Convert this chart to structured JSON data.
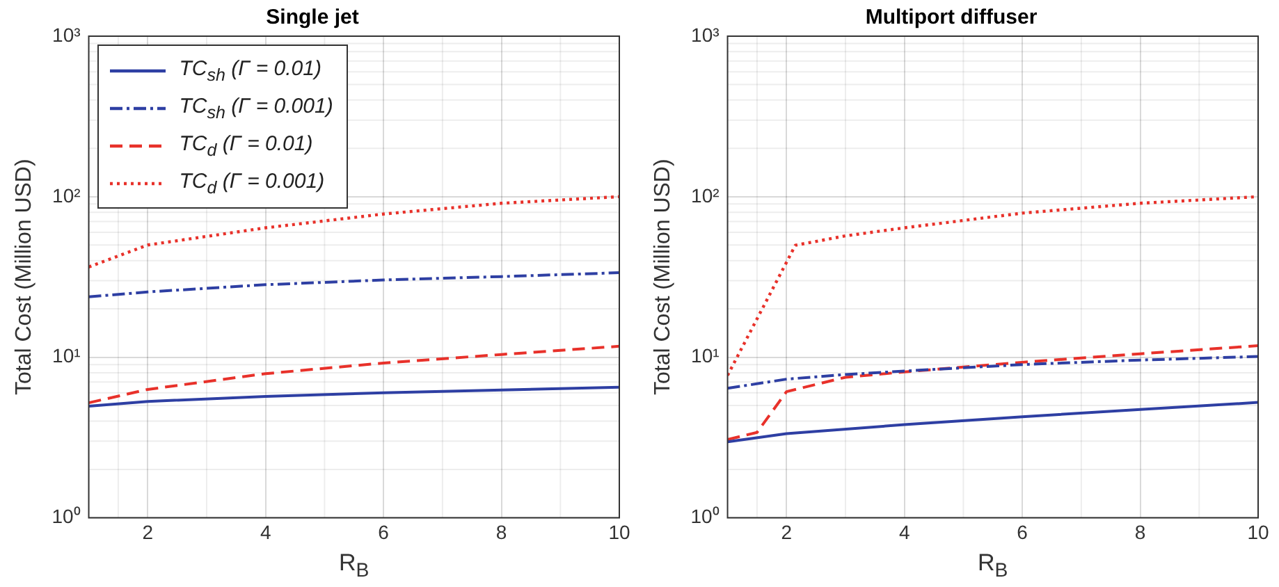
{
  "chart_data": [
    {
      "type": "line",
      "title": "Single jet",
      "xlabel": "R$_{B}$",
      "ylabel": "Total Cost (Million USD)",
      "log": "y",
      "grid": true,
      "legend": "top left",
      "marker": "none",
      "xlim": [
        1,
        10
      ],
      "xticks": [
        2,
        4,
        6,
        8,
        10
      ],
      "ylim": [
        1,
        1000
      ],
      "yticks": [
        {
          "value": 1,
          "label": "10⁰"
        },
        {
          "value": 10,
          "label": "10¹"
        },
        {
          "value": 100,
          "label": "10²"
        },
        {
          "value": 1000,
          "label": "10³"
        }
      ],
      "x": [
        1,
        2,
        4,
        6,
        8,
        10
      ],
      "series": [
        {
          "name": "TC$_{sh}$ (Γ = 0.01)",
          "color": "#2e3fa3",
          "line_style": "solid",
          "values": [
            4.95,
            5.3,
            5.7,
            6.0,
            6.25,
            6.5
          ]
        },
        {
          "name": "TC$_{sh}$ (Γ = 0.001)",
          "color": "#2e3fa3",
          "line_style": "dashdot",
          "values": [
            23.8,
            25.5,
            28.3,
            30.3,
            31.8,
            33.6
          ]
        },
        {
          "name": "TC$_{d}$ (Γ = 0.01)",
          "color": "#e8312a",
          "line_style": "dashed",
          "values": [
            5.2,
            6.3,
            7.9,
            9.2,
            10.4,
            11.7
          ]
        },
        {
          "name": "TC$_{d}$ (Γ = 0.001)",
          "color": "#e8312a",
          "line_style": "dotted",
          "values": [
            36.5,
            50,
            64,
            78,
            91,
            100
          ]
        }
      ]
    },
    {
      "type": "line",
      "title": "Multiport diffuser",
      "xlabel": "R$_{B}$",
      "ylabel": "Total Cost (Million USD)",
      "log": "y",
      "grid": true,
      "marker": "none",
      "xlim": [
        1,
        10
      ],
      "xticks": [
        2,
        4,
        6,
        8,
        10
      ],
      "ylim": [
        1,
        1000
      ],
      "yticks": [
        {
          "value": 1,
          "label": "10⁰"
        },
        {
          "value": 10,
          "label": "10¹"
        },
        {
          "value": 100,
          "label": "10²"
        },
        {
          "value": 1000,
          "label": "10³"
        }
      ],
      "series": [
        {
          "color": "#2e3fa3",
          "line_style": "solid",
          "x": [
            1,
            2,
            4,
            6,
            8,
            10
          ],
          "values": [
            2.97,
            3.34,
            3.8,
            4.26,
            4.72,
            5.23
          ]
        },
        {
          "color": "#2e3fa3",
          "line_style": "dashdot",
          "x": [
            1,
            2,
            3,
            4,
            6,
            8,
            10
          ],
          "values": [
            6.4,
            7.3,
            7.8,
            8.2,
            9.0,
            9.6,
            10.1
          ]
        },
        {
          "color": "#e8312a",
          "line_style": "dashed",
          "x": [
            1,
            1.5,
            2,
            3,
            4,
            6,
            8,
            10
          ],
          "values": [
            3.07,
            3.4,
            6.1,
            7.5,
            8.1,
            9.3,
            10.5,
            11.8
          ]
        },
        {
          "color": "#e8312a",
          "line_style": "dotted",
          "x": [
            1,
            2.15,
            3,
            4,
            6,
            8,
            10
          ],
          "values": [
            7.7,
            49.8,
            57,
            64,
            79,
            91,
            100
          ]
        }
      ]
    }
  ]
}
